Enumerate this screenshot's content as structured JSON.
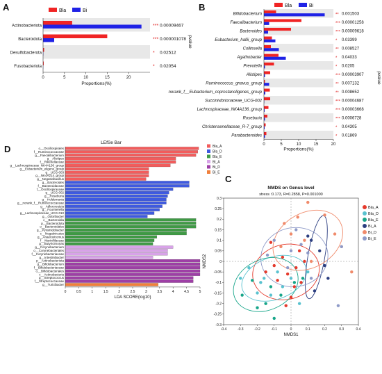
{
  "colors": {
    "bla": "#f02424",
    "bi": "#1f22e6",
    "sig": "#e02020",
    "band": "#e8e8e8",
    "lda_bla_a": "#f25c5c",
    "lda_bla_d": "#3f5ae0",
    "lda_bla_e": "#3f9a45",
    "lda_bi_a": "#d8a2e8",
    "lda_bi_d": "#9e3fa6",
    "lda_bi_e": "#f0803c",
    "nmds_bla_a": "#e53a2c",
    "nmds_bla_d": "#59c2cf",
    "nmds_bla_e": "#17a589",
    "nmds_bi_a": "#2c3e80",
    "nmds_bi_d": "#f08a6a",
    "nmds_bi_e": "#8e9ac8"
  },
  "chart_data": [
    {
      "panel": "A",
      "type": "bar",
      "orientation": "horizontal",
      "legend": [
        "Bla",
        "Bi"
      ],
      "legend_position": "top",
      "categories": [
        "Actinobacteriota",
        "Bacteroidota",
        "Desulfobacterota",
        "Fusobacteriota"
      ],
      "series": [
        {
          "name": "Bla",
          "values": [
            6.8,
            15.0,
            0.25,
            0.15
          ]
        },
        {
          "name": "Bi",
          "values": [
            23.0,
            2.6,
            0.05,
            0.03
          ]
        }
      ],
      "pvalues": [
        "0.00009467",
        "0.000001078",
        "0.02512",
        "0.02054"
      ],
      "stars": [
        "***",
        "***",
        "*",
        "*"
      ],
      "xlabel": "Proportions(%)",
      "right_label": "pvalue",
      "xlim": [
        0,
        25
      ],
      "xticks": [
        0,
        5,
        10,
        15,
        20
      ]
    },
    {
      "panel": "B",
      "type": "bar",
      "orientation": "horizontal",
      "legend": [
        "Bla",
        "Bi"
      ],
      "legend_position": "top",
      "categories": [
        "Bifidobacterium",
        "Faecalibacterium",
        "Bacteroides",
        "Eubacterium_hallii_group",
        "Collinsella",
        "Agathobacter",
        "Prevotella",
        "Alistipes",
        "Ruminococcus_gnavus_group",
        "norank_f__Eubacterium_coprostanoligenes_group",
        "Succinivibrionaceae_UCG-002",
        "Lachnospiraceae_NK4A136_group",
        "Roseburia",
        "Christensenellaceae_R-7_group",
        "Parabacteroides"
      ],
      "series": [
        {
          "name": "Bla",
          "values": [
            3.5,
            10.8,
            7.8,
            2.3,
            2.0,
            4.2,
            2.9,
            1.8,
            0.3,
            1.7,
            1.8,
            1.3,
            1.0,
            0.5,
            0.7
          ]
        },
        {
          "name": "Bi",
          "values": [
            17.5,
            1.5,
            1.2,
            3.3,
            4.3,
            6.3,
            0.3,
            0.3,
            1.5,
            0.4,
            0.1,
            0.2,
            0.3,
            0.2,
            0.3
          ]
        }
      ],
      "pvalues": [
        "0.001503",
        "0.00001258",
        "0.00009618",
        "0.03399",
        "0.008527",
        "0.04033",
        "0.0205",
        "0.00003907",
        "0.007132",
        "0.008652",
        "0.00004687",
        "0.00003668",
        "0.0006728",
        "0.04305",
        "0.01869"
      ],
      "stars": [
        "**",
        "***",
        "***",
        "*",
        "**",
        "*",
        "*",
        "***",
        "**",
        "**",
        "***",
        "***",
        "***",
        "*",
        "*"
      ],
      "xlabel": "Proportions(%)",
      "right_label": "pvalue",
      "xlim": [
        0,
        20
      ],
      "xticks": [
        0,
        5,
        10,
        15,
        20
      ]
    },
    {
      "panel": "D",
      "type": "bar",
      "orientation": "horizontal",
      "title": "LEfSe Bar",
      "xlabel": "LDA SCORE(log10)",
      "xlim": [
        0,
        5
      ],
      "xticks": [
        0,
        0.5,
        1,
        1.5,
        2,
        2.5,
        3,
        3.5,
        4,
        4.5,
        5
      ],
      "legend_position": "right",
      "legend": [
        "Bla_A",
        "Bla_D",
        "Bla_E",
        "Bi_A",
        "Bi_D",
        "Bi_E"
      ],
      "groups": [
        {
          "name": "Bla_A",
          "items": [
            {
              "label": "o__Oscillospirales",
              "value": 4.95
            },
            {
              "label": "f__Ruminococcaceae",
              "value": 4.92
            },
            {
              "label": "g__Faecalibacterium",
              "value": 4.85
            },
            {
              "label": "g__Alistipes",
              "value": 4.1
            },
            {
              "label": "f__Rikenellaceae",
              "value": 4.1
            },
            {
              "label": "g__Lachnospiraceae_NK4A136_group",
              "value": 3.9
            },
            {
              "label": "g__Eubacterium_eligens_group",
              "value": 3.1
            },
            {
              "label": "g__UCG-003",
              "value": 3.1
            },
            {
              "label": "g__NK4A214_group",
              "value": 3.1
            },
            {
              "label": "g__Negativibacillus",
              "value": 3.0
            }
          ]
        },
        {
          "name": "Bla_D",
          "items": [
            {
              "label": "g__Bacteroides",
              "value": 4.6
            },
            {
              "label": "f__Bacteroidaceae",
              "value": 4.6
            },
            {
              "label": "f__Oscillospiraceae",
              "value": 4.0
            },
            {
              "label": "g__UCG-002",
              "value": 3.85
            },
            {
              "label": "g__Roseburia",
              "value": 3.8
            },
            {
              "label": "g__Holdemania",
              "value": 3.75
            },
            {
              "label": "g__norank_f__Ruminococcaceae",
              "value": 3.75
            },
            {
              "label": "g__Adlercreutzia",
              "value": 3.6
            },
            {
              "label": "g__Fournierella",
              "value": 3.5
            },
            {
              "label": "g__Lachnospiraceae_UCG-010",
              "value": 3.3
            },
            {
              "label": "g__Odoribacter",
              "value": 3.05
            }
          ]
        },
        {
          "name": "Bla_E",
          "items": [
            {
              "label": "c__Bacteroidia",
              "value": 4.85
            },
            {
              "label": "p__Bacteroidota",
              "value": 4.85
            },
            {
              "label": "o__Bacteroidales",
              "value": 4.85
            },
            {
              "label": "g__Pyramidobacter",
              "value": 4.5
            },
            {
              "label": "c__Negativicutes",
              "value": 4.5
            },
            {
              "label": "g__Anaerostromus",
              "value": 3.4
            },
            {
              "label": "f__Marinifilaceae",
              "value": 3.3
            },
            {
              "label": "g__Butyricimonas",
              "value": 3.25
            }
          ]
        },
        {
          "name": "Bi_A",
          "items": [
            {
              "label": "g__Corynebacterium",
              "value": 4.0
            },
            {
              "label": "o__Corynebacteriales",
              "value": 3.8
            },
            {
              "label": "f__Corynebacteriaceae",
              "value": 3.8
            },
            {
              "label": "g__Intestinibacter",
              "value": 3.25
            }
          ]
        },
        {
          "name": "Bi_D",
          "items": [
            {
              "label": "p__Actinobacteriota",
              "value": 5.0
            },
            {
              "label": "g__Bifidobacterium",
              "value": 5.0
            },
            {
              "label": "f__Bifidobacteriaceae",
              "value": 5.0
            },
            {
              "label": "o__Bifidobacteriales",
              "value": 5.0
            },
            {
              "label": "c__Actinobacteria",
              "value": 5.0
            },
            {
              "label": "g__Streptococcus",
              "value": 4.75
            },
            {
              "label": "f__Streptococcaceae",
              "value": 4.75
            }
          ]
        },
        {
          "name": "Bi_E",
          "items": [
            {
              "label": "g__Turicibacter",
              "value": 3.45
            }
          ]
        }
      ]
    },
    {
      "panel": "C",
      "type": "scatter",
      "title": "NMDS on Genus level",
      "subtitle": "stress :0.173, R=0.2858, P=0.001000",
      "xlabel": "NMDS1",
      "ylabel": "NMDS2",
      "xlim": [
        -0.4,
        0.4
      ],
      "ylim": [
        -0.3,
        0.3
      ],
      "xticks": [
        -0.4,
        -0.3,
        -0.2,
        -0.1,
        0,
        0.1,
        0.2,
        0.3,
        0.4
      ],
      "yticks": [
        -0.3,
        -0.25,
        -0.2,
        -0.15,
        -0.1,
        -0.05,
        0,
        0.05,
        0.1,
        0.15,
        0.2,
        0.25,
        0.3
      ],
      "legend_position": "right",
      "series": [
        {
          "name": "Bla_A",
          "points": [
            [
              -0.12,
              0.09
            ],
            [
              -0.05,
              0.02
            ],
            [
              0.03,
              -0.03
            ],
            [
              -0.15,
              -0.05
            ],
            [
              -0.08,
              -0.09
            ],
            [
              0.02,
              -0.12
            ],
            [
              -0.02,
              -0.06
            ],
            [
              0.08,
              0.0
            ],
            [
              0.0,
              -0.17
            ],
            [
              -0.1,
              -0.02
            ],
            [
              0.05,
              0.05
            ],
            [
              -0.03,
              -0.21
            ],
            [
              0.06,
              -0.1
            ]
          ],
          "ellipse": {
            "cx": -0.03,
            "cy": -0.05,
            "rx": 0.2,
            "ry": 0.13,
            "rot": -15
          }
        },
        {
          "name": "Bla_D",
          "points": [
            [
              -0.16,
              -0.08
            ],
            [
              -0.2,
              -0.15
            ],
            [
              -0.08,
              -0.05
            ],
            [
              0.0,
              -0.08
            ],
            [
              -0.25,
              -0.03
            ],
            [
              -0.12,
              -0.16
            ],
            [
              0.05,
              -0.2
            ],
            [
              -0.05,
              -0.12
            ],
            [
              0.1,
              -0.05
            ],
            [
              -0.18,
              -0.1
            ],
            [
              -0.3,
              -0.08
            ]
          ],
          "ellipse": {
            "cx": -0.1,
            "cy": -0.08,
            "rx": 0.2,
            "ry": 0.1,
            "rot": -20
          }
        },
        {
          "name": "Bla_E",
          "points": [
            [
              -0.29,
              -0.16
            ],
            [
              -0.15,
              -0.2
            ],
            [
              -0.23,
              -0.09
            ],
            [
              -0.06,
              -0.16
            ],
            [
              0.02,
              -0.1
            ],
            [
              -0.1,
              -0.27
            ],
            [
              -0.2,
              -0.22
            ],
            [
              0.07,
              -0.08
            ],
            [
              -0.12,
              -0.12
            ]
          ],
          "ellipse": {
            "cx": -0.15,
            "cy": -0.11,
            "rx": 0.2,
            "ry": 0.12,
            "rot": -25
          }
        },
        {
          "name": "Bi_A",
          "points": [
            [
              0.12,
              0.1
            ],
            [
              0.2,
              -0.02
            ],
            [
              0.14,
              -0.14
            ],
            [
              0.17,
              0.05
            ],
            [
              0.22,
              -0.08
            ],
            [
              0.1,
              0.12
            ]
          ],
          "ellipse": {
            "cx": 0.15,
            "cy": 0.02,
            "rx": 0.05,
            "ry": 0.2,
            "rot": 10
          }
        },
        {
          "name": "Bi_D",
          "points": [
            [
              0.04,
              0.21
            ],
            [
              -0.04,
              0.18
            ],
            [
              0.1,
              0.28
            ],
            [
              0.2,
              0.22
            ],
            [
              0.08,
              0.1
            ],
            [
              -0.06,
              0.07
            ],
            [
              0.26,
              0.13
            ],
            [
              0.12,
              0.0
            ],
            [
              0.36,
              -0.05
            ],
            [
              0.0,
              0.13
            ],
            [
              0.3,
              0.07
            ]
          ],
          "ellipse": {
            "cx": 0.1,
            "cy": 0.1,
            "rx": 0.22,
            "ry": 0.13,
            "rot": -30
          }
        },
        {
          "name": "Bi_E",
          "points": [
            [
              -0.1,
              0.1
            ],
            [
              0.0,
              0.05
            ],
            [
              0.06,
              0.08
            ],
            [
              -0.02,
              -0.03
            ],
            [
              0.1,
              0.04
            ],
            [
              -0.14,
              0.03
            ],
            [
              0.03,
              0.15
            ],
            [
              0.12,
              -0.08
            ],
            [
              0.28,
              -0.21
            ],
            [
              0.3,
              0.07
            ]
          ],
          "ellipse": {
            "cx": 0.02,
            "cy": 0.02,
            "rx": 0.2,
            "ry": 0.14,
            "rot": -10
          }
        }
      ]
    }
  ]
}
